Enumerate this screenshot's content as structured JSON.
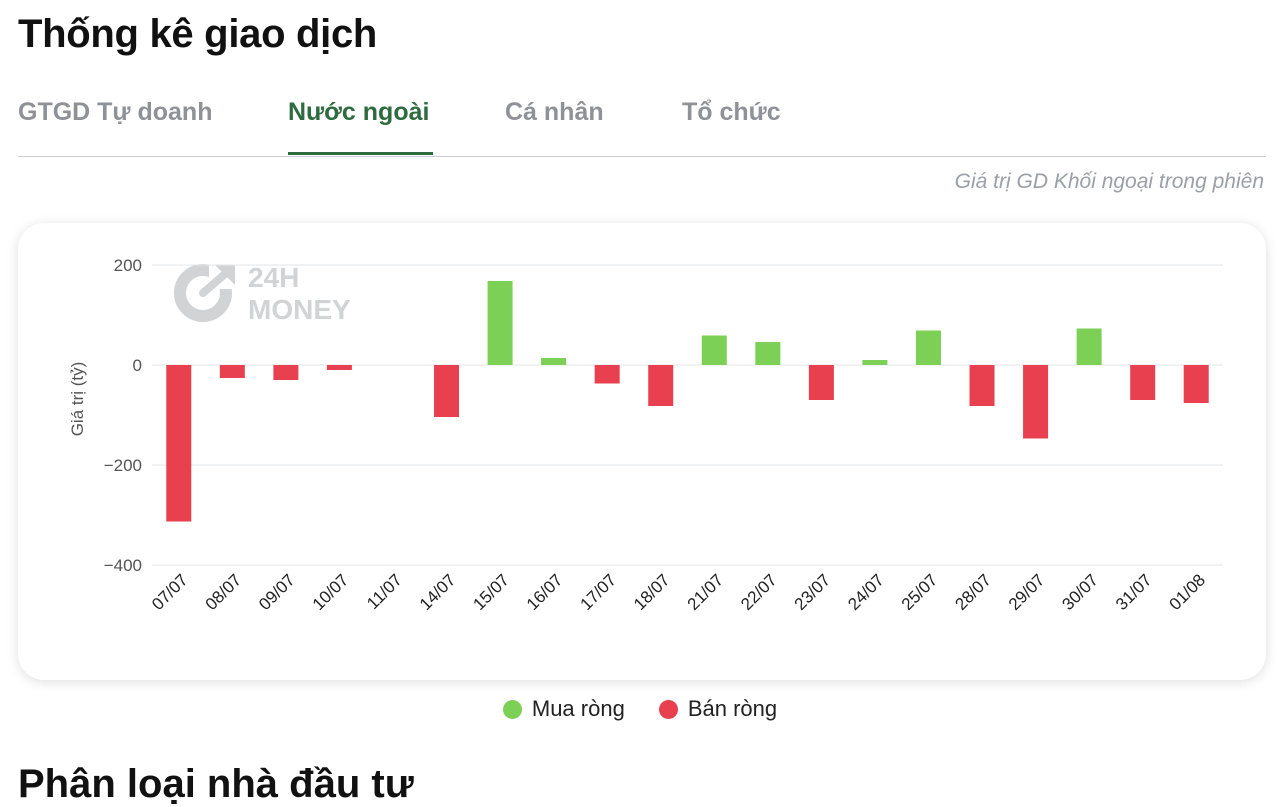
{
  "page": {
    "title": "Thống kê giao dịch",
    "subtitle": "Giá trị GD Khối ngoại trong phiên",
    "next_section_title": "Phân loại nhà đầu tư"
  },
  "tabs": [
    {
      "label": "GTGD Tự doanh",
      "active": false
    },
    {
      "label": "Nước ngoài",
      "active": true
    },
    {
      "label": "Cá nhân",
      "active": false
    },
    {
      "label": "Tổ chức",
      "active": false
    }
  ],
  "watermark": {
    "line1": "24H",
    "line2": "MONEY"
  },
  "colors": {
    "buy": "#7dd056",
    "sell": "#e8404f",
    "accent": "#2e6b3f"
  },
  "legend": [
    {
      "label": "Mua ròng",
      "color": "#7dd056"
    },
    {
      "label": "Bán ròng",
      "color": "#e8404f"
    }
  ],
  "chart_data": {
    "type": "bar",
    "ylabel": "Giá trị (tỷ)",
    "ylim": [
      -400,
      200
    ],
    "yticks": [
      200,
      0,
      -200,
      -400
    ],
    "ytick_labels": [
      "200",
      "0",
      "−200",
      "−400"
    ],
    "grid": true,
    "legend_position": "bottom",
    "categories": [
      "07/07",
      "08/07",
      "09/07",
      "10/07",
      "11/07",
      "14/07",
      "15/07",
      "16/07",
      "17/07",
      "18/07",
      "21/07",
      "22/07",
      "23/07",
      "24/07",
      "25/07",
      "28/07",
      "29/07",
      "30/07",
      "31/07",
      "01/08"
    ],
    "values": [
      -313,
      -26,
      -30,
      -10,
      0,
      -104,
      168,
      14,
      -37,
      -82,
      59,
      46,
      -70,
      10,
      69,
      -82,
      -147,
      73,
      -70,
      -76
    ]
  }
}
